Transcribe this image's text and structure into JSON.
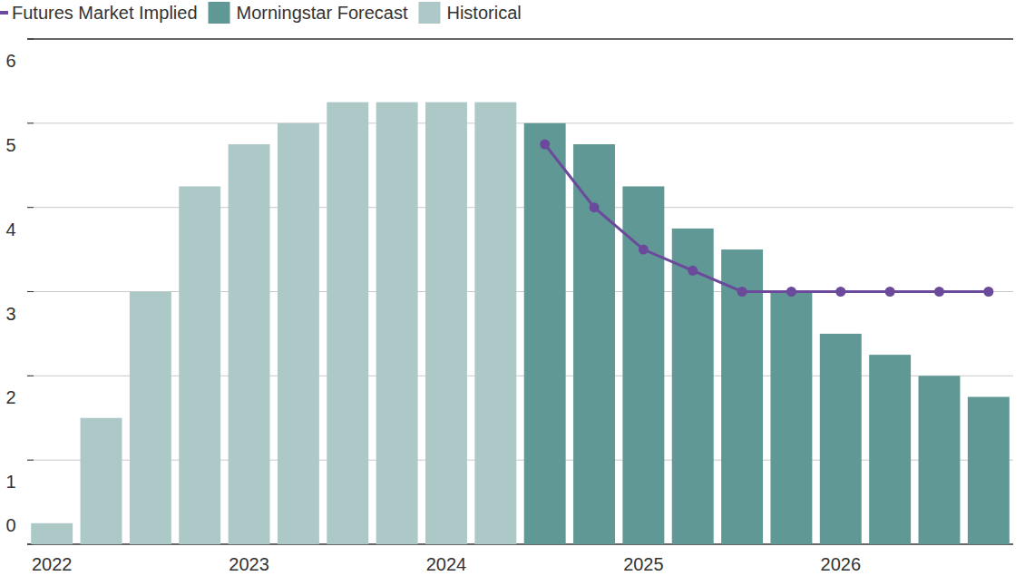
{
  "chart_data": {
    "type": "bar",
    "categories": [
      "2022",
      null,
      null,
      null,
      "2023",
      null,
      null,
      null,
      "2024",
      null,
      null,
      null,
      "2025",
      null,
      null,
      null,
      "2026",
      null,
      null,
      null
    ],
    "series": [
      {
        "name": "Futures Market Implied",
        "type": "line",
        "marker": "circle",
        "color": "#6b4a9b",
        "values": [
          null,
          null,
          null,
          null,
          null,
          null,
          null,
          null,
          null,
          null,
          4.75,
          4.0,
          3.5,
          3.25,
          3.0,
          3.0,
          3.0,
          3.0,
          3.0,
          3.0
        ]
      },
      {
        "name": "Morningstar Forecast",
        "type": "bar",
        "color": "#5f9894",
        "values": [
          null,
          null,
          null,
          null,
          null,
          null,
          null,
          null,
          null,
          null,
          5.0,
          4.75,
          4.25,
          3.75,
          3.5,
          3.0,
          2.5,
          2.25,
          2.0,
          1.75
        ]
      },
      {
        "name": "Historical",
        "type": "bar",
        "color": "#adc9c7",
        "values": [
          0.25,
          1.5,
          3.0,
          4.25,
          4.75,
          5.0,
          5.25,
          5.25,
          5.25,
          5.25,
          null,
          null,
          null,
          null,
          null,
          null,
          null,
          null,
          null,
          null
        ]
      }
    ],
    "ylim": [
      0,
      6
    ],
    "yticks": [
      0,
      1,
      2,
      3,
      4,
      5,
      6
    ],
    "grid": true,
    "legend": "top-left"
  }
}
